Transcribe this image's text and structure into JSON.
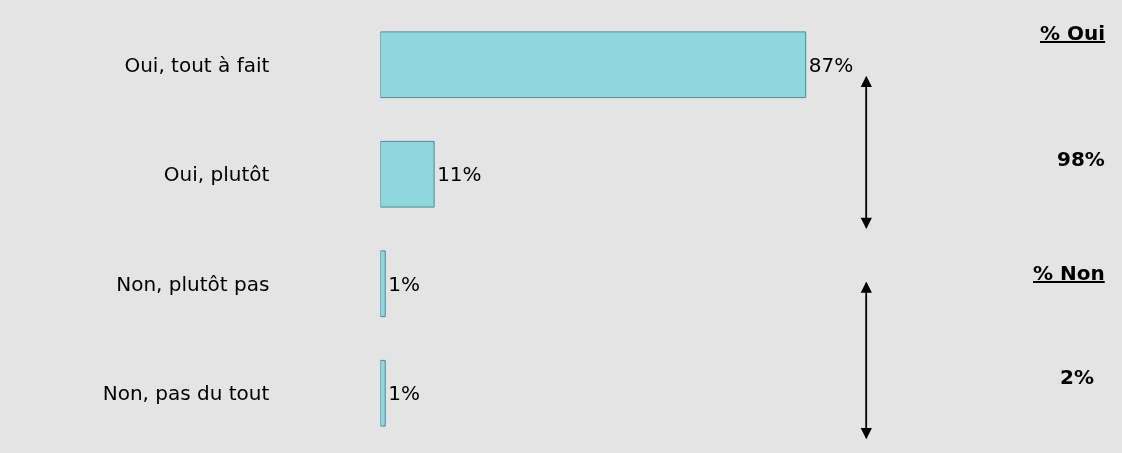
{
  "chart_data": {
    "type": "bar",
    "orientation": "horizontal",
    "categories": [
      "Oui, tout à fait",
      "Oui, plutôt",
      "Non, plutôt pas",
      "Non, pas du tout"
    ],
    "values": [
      87,
      11,
      1,
      1
    ],
    "color": "#8fd6df",
    "data_labels": true,
    "value_labels": [
      "87%",
      "11%",
      "1%",
      "1%"
    ],
    "grid": false,
    "legend": false,
    "annotations": [
      "% Oui",
      "98%",
      "% Non",
      "2%"
    ]
  }
}
